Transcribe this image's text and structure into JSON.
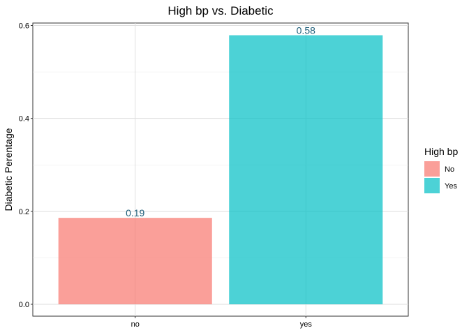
{
  "chart_data": {
    "type": "bar",
    "title": "High bp vs. Diabetic",
    "xlabel": "",
    "ylabel": "Diabetic Perentage",
    "categories": [
      "no",
      "yes"
    ],
    "values": [
      0.186,
      0.579
    ],
    "data_labels": [
      "0.19",
      "0.58"
    ],
    "bar_colors": [
      "#F8766D",
      "#00BFC4"
    ],
    "bar_opacity": 0.7,
    "data_label_color": "#1F5F7A",
    "ylim": [
      0,
      0.6
    ],
    "yticks": [
      0.0,
      0.2,
      0.4,
      0.6
    ],
    "ytick_labels": [
      "0.0",
      "0.2",
      "0.4",
      "0.6"
    ],
    "grid": true,
    "legend": {
      "title": "High bp",
      "position": "right",
      "items": [
        {
          "label": "No",
          "color": "#F8766D"
        },
        {
          "label": "Yes",
          "color": "#00BFC4"
        }
      ]
    }
  }
}
